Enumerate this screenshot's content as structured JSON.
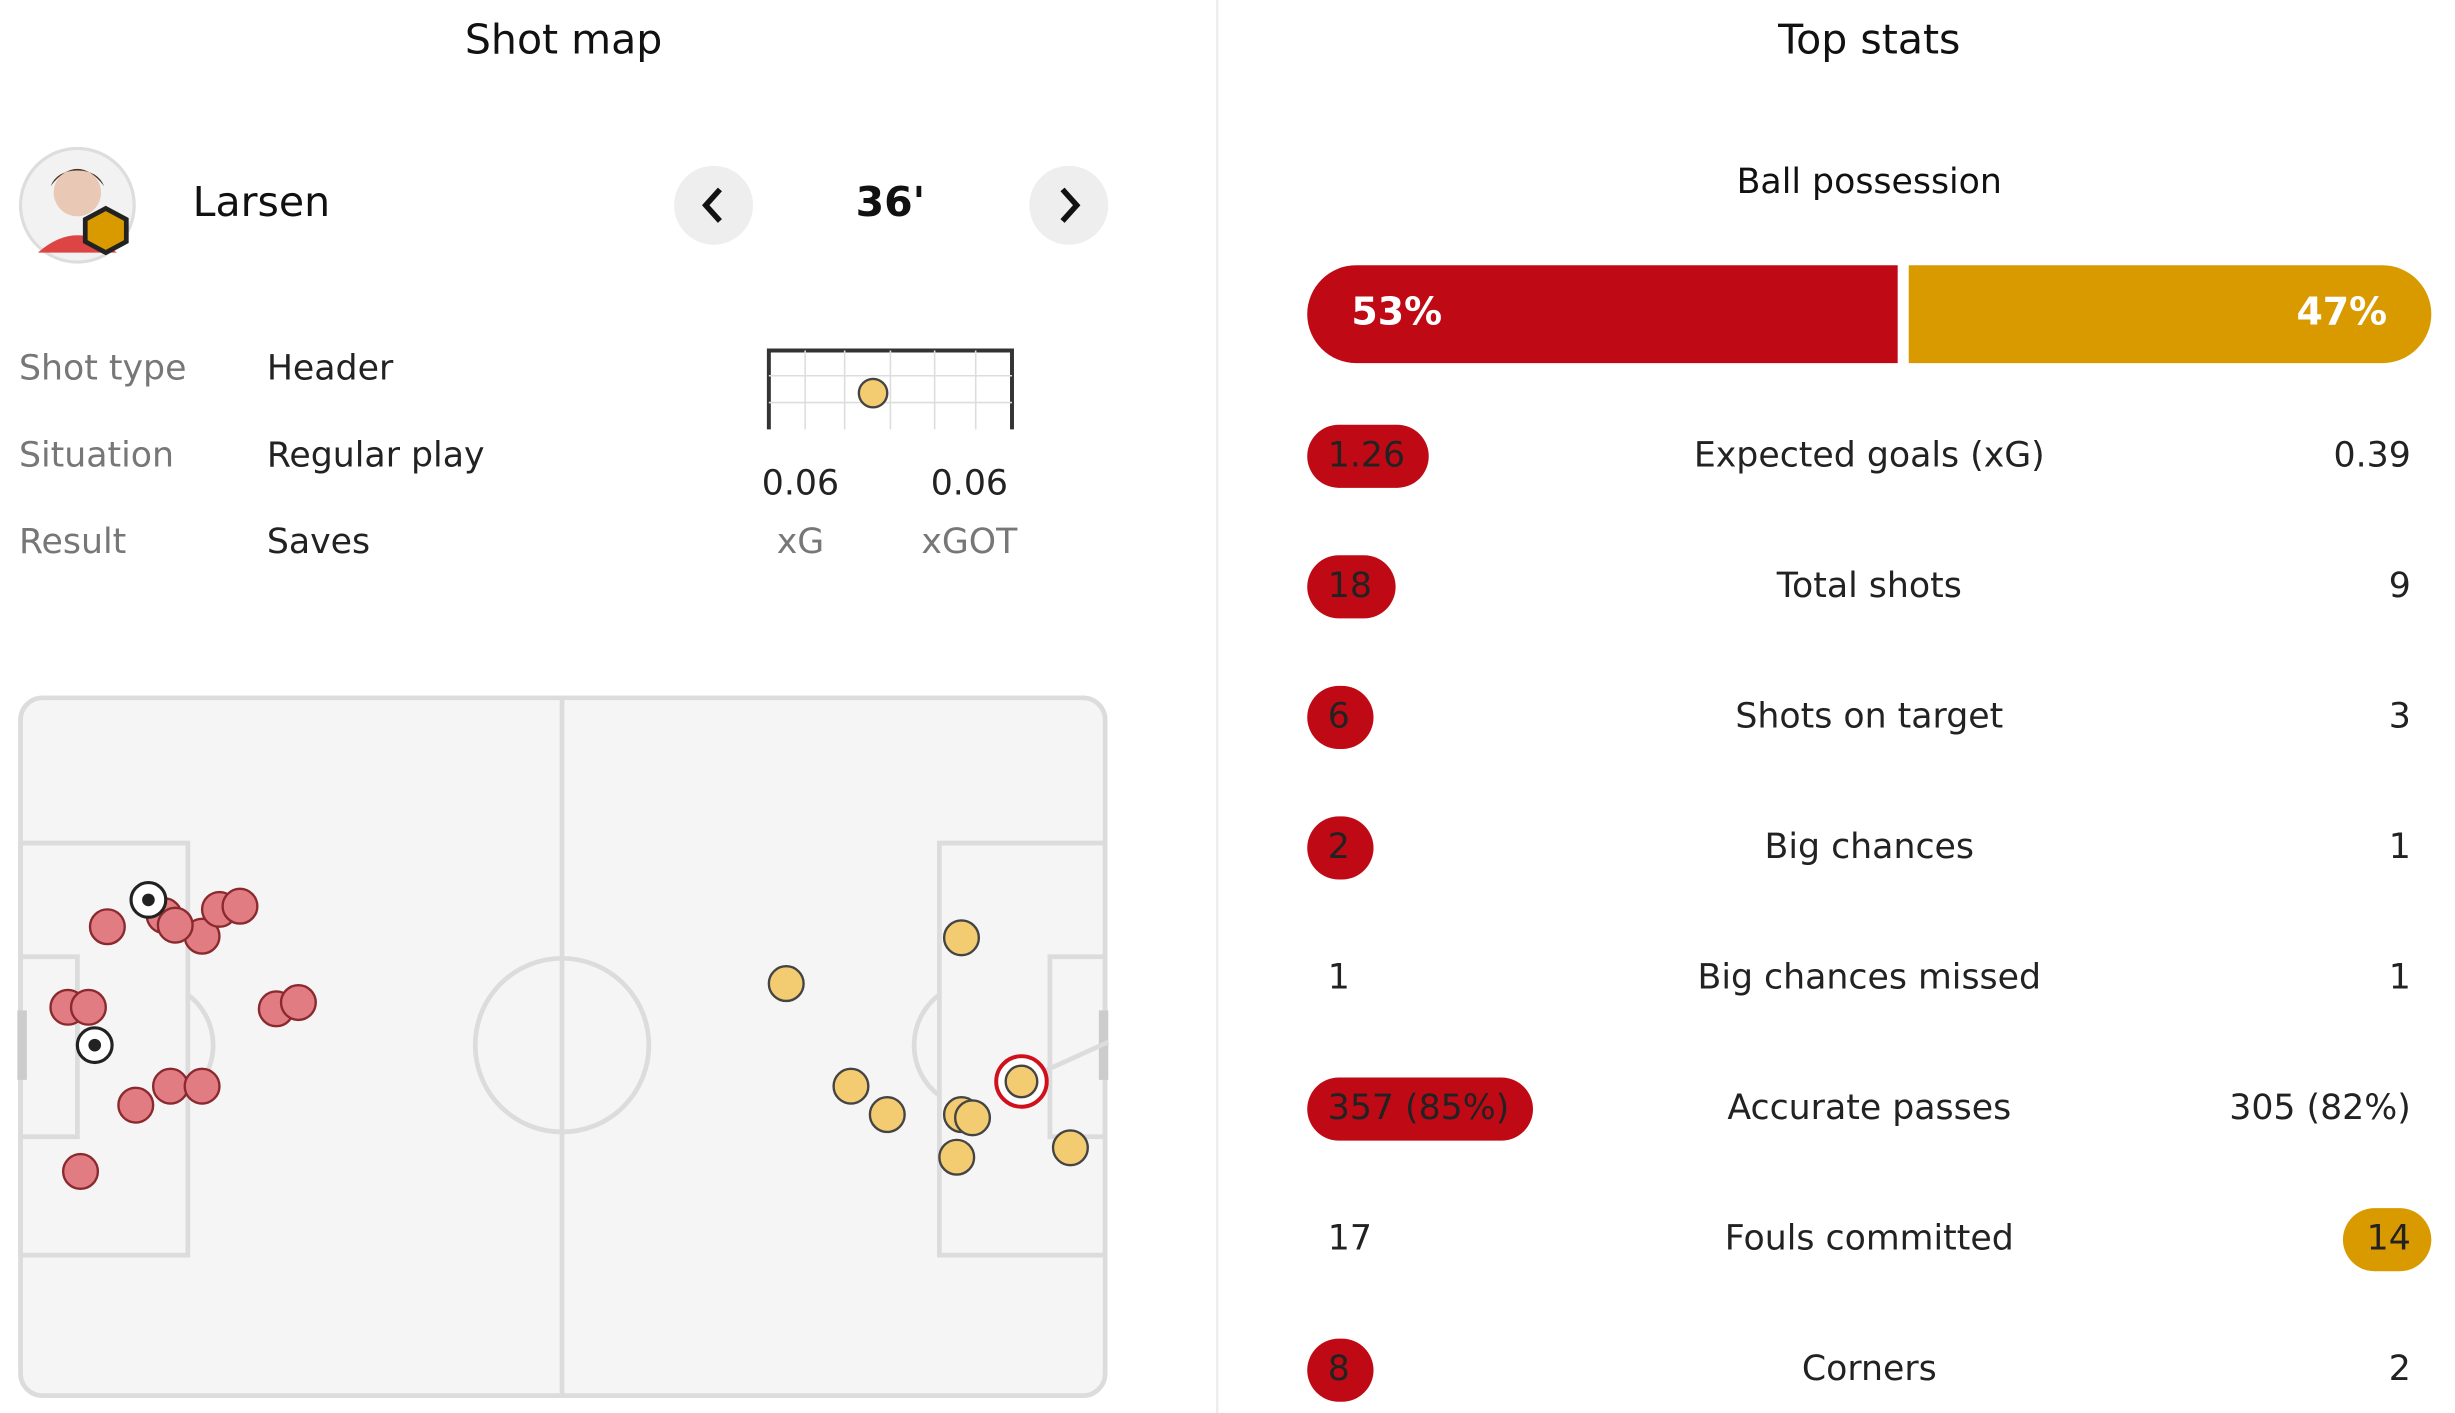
{
  "shot_map": {
    "title": "Shot map",
    "player": "Larsen",
    "minute": "36'",
    "details": [
      {
        "label": "Shot type",
        "value": "Header"
      },
      {
        "label": "Situation",
        "value": "Regular play"
      },
      {
        "label": "Result",
        "value": "Saves"
      }
    ],
    "metrics": [
      {
        "value": "0.06",
        "label": "xG"
      },
      {
        "value": "0.06",
        "label": "xGOT"
      }
    ]
  },
  "top_stats": {
    "title": "Top stats",
    "possession": {
      "label": "Ball possession",
      "home": "53%",
      "away": "47%"
    },
    "rows": [
      {
        "label": "Expected goals (xG)",
        "home": "1.26",
        "away": "0.39",
        "highlight": "home"
      },
      {
        "label": "Total shots",
        "home": "18",
        "away": "9",
        "highlight": "home"
      },
      {
        "label": "Shots on target",
        "home": "6",
        "away": "3",
        "highlight": "home"
      },
      {
        "label": "Big chances",
        "home": "2",
        "away": "1",
        "highlight": "home"
      },
      {
        "label": "Big chances missed",
        "home": "1",
        "away": "1",
        "highlight": null
      },
      {
        "label": "Accurate passes",
        "home": "357 (85%)",
        "away": "305 (82%)",
        "highlight": "home"
      },
      {
        "label": "Fouls committed",
        "home": "17",
        "away": "14",
        "highlight": "away"
      },
      {
        "label": "Corners",
        "home": "8",
        "away": "2",
        "highlight": "home"
      }
    ]
  }
}
